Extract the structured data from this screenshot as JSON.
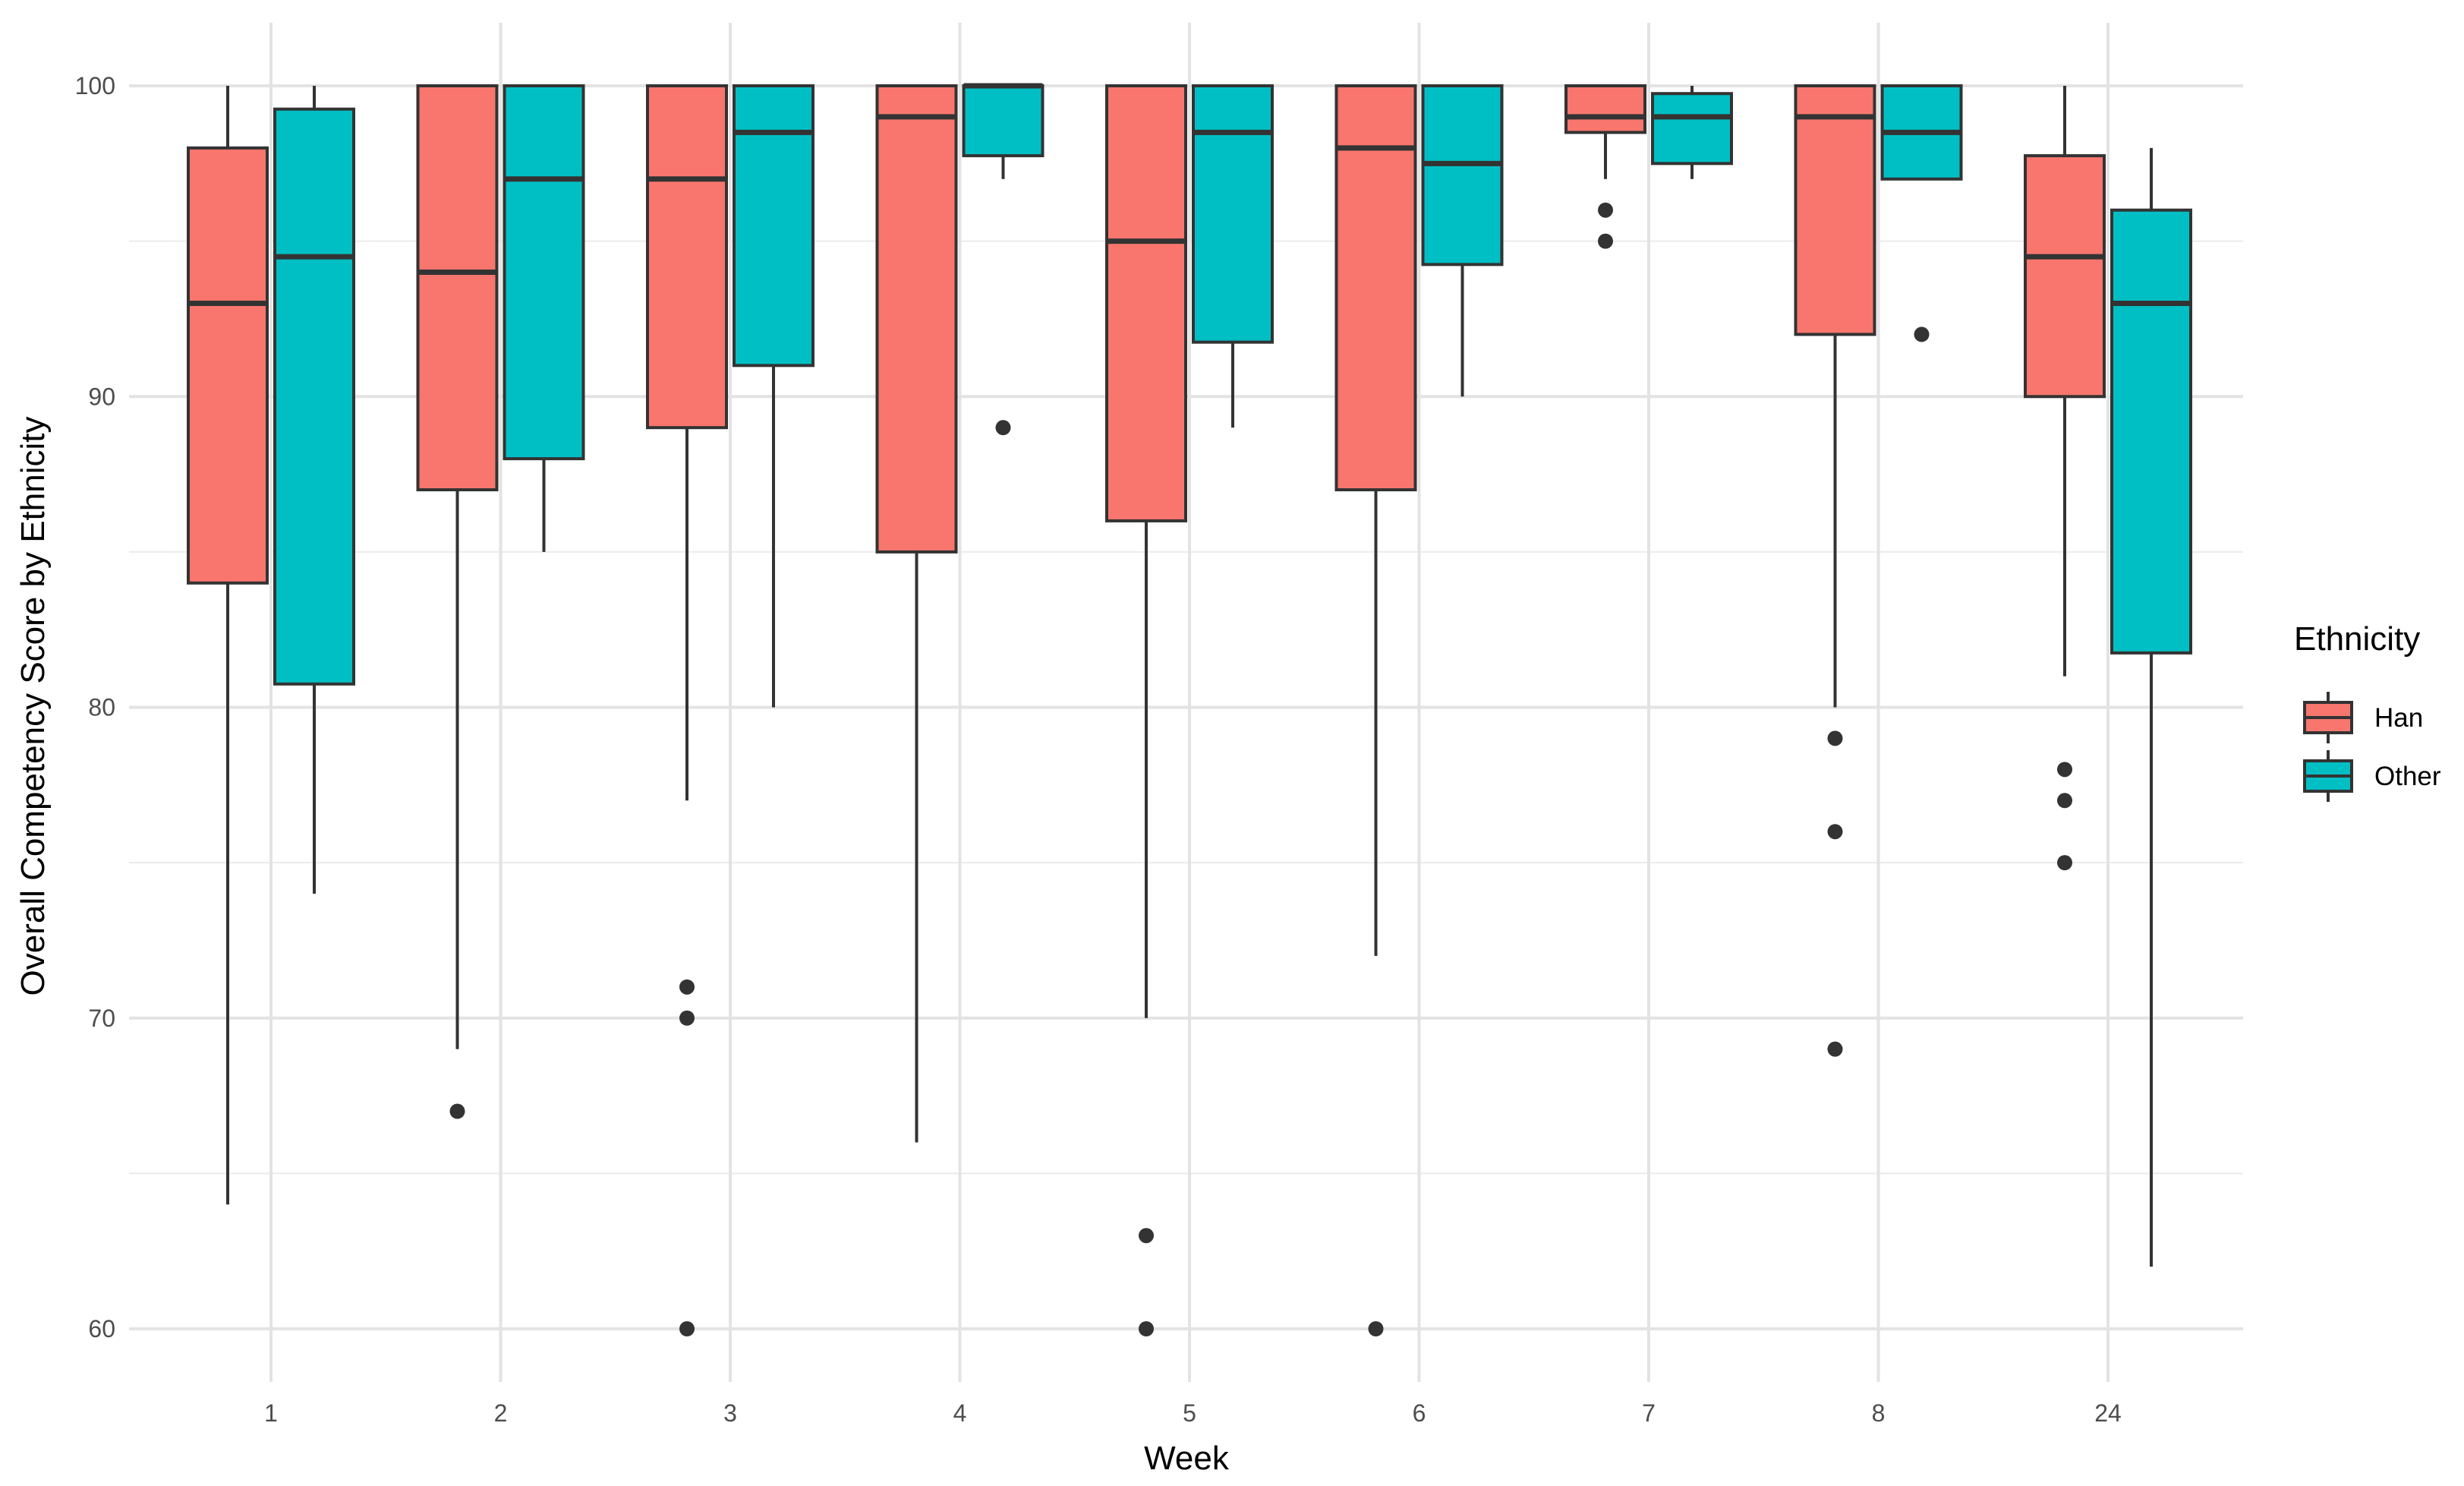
{
  "chart_data": {
    "type": "box",
    "xlabel": "Week",
    "ylabel": "Overall Competency Score by Ethnicity",
    "ylim": [
      58,
      102
    ],
    "y_ticks": [
      60,
      70,
      80,
      90,
      100
    ],
    "grid": true,
    "legend": {
      "title": "Ethnicity",
      "placement": "right"
    },
    "categories": [
      "1",
      "2",
      "3",
      "4",
      "5",
      "6",
      "7",
      "8",
      "24"
    ],
    "series": [
      {
        "name": "Han",
        "color": "#F8766D",
        "boxes": [
          {
            "week": "1",
            "min": 64,
            "q1": 84,
            "median": 93,
            "q3": 98,
            "max": 100,
            "outliers": []
          },
          {
            "week": "2",
            "min": 69,
            "q1": 87,
            "median": 94,
            "q3": 100,
            "max": 100,
            "outliers": [
              67
            ]
          },
          {
            "week": "3",
            "min": 77,
            "q1": 89,
            "median": 97,
            "q3": 100,
            "max": 100,
            "outliers": [
              71,
              70,
              60
            ]
          },
          {
            "week": "4",
            "min": 66,
            "q1": 85,
            "median": 99,
            "q3": 100,
            "max": 100,
            "outliers": []
          },
          {
            "week": "5",
            "min": 70,
            "q1": 86,
            "median": 95,
            "q3": 100,
            "max": 100,
            "outliers": [
              63,
              60
            ]
          },
          {
            "week": "6",
            "min": 72,
            "q1": 87,
            "median": 98,
            "q3": 100,
            "max": 100,
            "outliers": [
              60
            ]
          },
          {
            "week": "7",
            "min": 97,
            "q1": 98.5,
            "median": 99,
            "q3": 100,
            "max": 100,
            "outliers": [
              96,
              95
            ]
          },
          {
            "week": "8",
            "min": 80,
            "q1": 92,
            "median": 99,
            "q3": 100,
            "max": 100,
            "outliers": [
              79,
              76,
              69
            ]
          },
          {
            "week": "24",
            "min": 81,
            "q1": 90,
            "median": 94.5,
            "q3": 97.75,
            "max": 100,
            "outliers": [
              78,
              77,
              75
            ]
          }
        ]
      },
      {
        "name": "Other",
        "color": "#00BFC4",
        "boxes": [
          {
            "week": "1",
            "min": 74,
            "q1": 80.75,
            "median": 94.5,
            "q3": 99.25,
            "max": 100,
            "outliers": []
          },
          {
            "week": "2",
            "min": 85,
            "q1": 88,
            "median": 97,
            "q3": 100,
            "max": 100,
            "outliers": []
          },
          {
            "week": "3",
            "min": 80,
            "q1": 91,
            "median": 98.5,
            "q3": 100,
            "max": 100,
            "outliers": []
          },
          {
            "week": "4",
            "min": 97,
            "q1": 97.75,
            "median": 100,
            "q3": 100,
            "max": 100,
            "outliers": [
              89
            ]
          },
          {
            "week": "5",
            "min": 89,
            "q1": 91.75,
            "median": 98.5,
            "q3": 100,
            "max": 100,
            "outliers": []
          },
          {
            "week": "6",
            "min": 90,
            "q1": 94.25,
            "median": 97.5,
            "q3": 100,
            "max": 100,
            "outliers": []
          },
          {
            "week": "7",
            "min": 97,
            "q1": 97.5,
            "median": 99,
            "q3": 99.75,
            "max": 100,
            "outliers": []
          },
          {
            "week": "8",
            "min": 97,
            "q1": 97,
            "median": 98.5,
            "q3": 100,
            "max": 100,
            "outliers": [
              92
            ]
          },
          {
            "week": "24",
            "min": 62,
            "q1": 81.75,
            "median": 93,
            "q3": 96,
            "max": 98,
            "outliers": []
          }
        ]
      }
    ]
  }
}
